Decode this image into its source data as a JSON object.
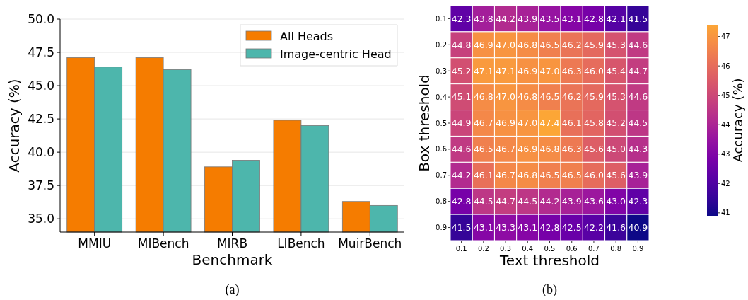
{
  "chart_data": [
    {
      "type": "bar",
      "categories": [
        "MMIU",
        "MIBench",
        "MIRB",
        "LIBench",
        "MuirBench"
      ],
      "series": [
        {
          "name": "All Heads",
          "color": "#f57c00",
          "values": [
            47.1,
            47.1,
            38.9,
            42.4,
            36.3
          ]
        },
        {
          "name": "Image-centric Head",
          "color": "#4db6ac",
          "values": [
            46.4,
            46.2,
            39.4,
            42.0,
            36.0
          ]
        }
      ],
      "xlabel": "Benchmark",
      "ylabel": "Accuracy (%)",
      "ylim": [
        34,
        50
      ],
      "yticks": [
        {
          "value": 35,
          "label": "35.0"
        },
        {
          "value": 37.5,
          "label": "37.5"
        },
        {
          "value": 40,
          "label": "40.0"
        },
        {
          "value": 42.5,
          "label": "42.5"
        },
        {
          "value": 45,
          "label": "45.0"
        },
        {
          "value": 47.5,
          "label": "47.5"
        },
        {
          "value": 50,
          "label": "50.0"
        }
      ],
      "grid": "y",
      "legend": "top right",
      "annotations": [
        "(a)"
      ]
    },
    {
      "type": "heatmap",
      "categories": [
        "0.1",
        "0.2",
        "0.3",
        "0.4",
        "0.5",
        "0.6",
        "0.7",
        "0.8",
        "0.9"
      ],
      "y_categories": [
        "0.1",
        "0.2",
        "0.3",
        "0.4",
        "0.5",
        "0.6",
        "0.7",
        "0.8",
        "0.9"
      ],
      "cells": [
        [
          42.3,
          43.8,
          44.2,
          43.9,
          43.5,
          43.1,
          42.8,
          42.1,
          41.5
        ],
        [
          44.8,
          46.9,
          47.0,
          46.8,
          46.5,
          46.2,
          45.9,
          45.3,
          44.6
        ],
        [
          45.2,
          47.1,
          47.1,
          46.9,
          47.0,
          46.3,
          46.0,
          45.4,
          44.7
        ],
        [
          45.1,
          46.8,
          47.0,
          46.8,
          46.5,
          46.2,
          45.9,
          45.3,
          44.6
        ],
        [
          44.9,
          46.7,
          46.9,
          47.0,
          47.4,
          46.1,
          45.8,
          45.2,
          44.5
        ],
        [
          44.6,
          46.5,
          46.7,
          46.9,
          46.8,
          46.3,
          45.6,
          45.0,
          44.3
        ],
        [
          44.2,
          46.1,
          46.7,
          46.8,
          46.5,
          46.5,
          46.0,
          45.6,
          43.9
        ],
        [
          42.8,
          44.5,
          44.7,
          44.5,
          44.2,
          43.9,
          43.6,
          43.0,
          42.3
        ],
        [
          41.5,
          43.1,
          43.3,
          43.1,
          42.8,
          42.5,
          42.2,
          41.6,
          40.9
        ]
      ],
      "cell_labels": [
        [
          "42.3",
          "43.8",
          "44.2",
          "43.9",
          "43.5",
          "43.1",
          "42.8",
          "42.1",
          "41.5"
        ],
        [
          "44.8",
          "46.9",
          "47.0",
          "46.8",
          "46.5",
          "46.2",
          "45.9",
          "45.3",
          "44.6"
        ],
        [
          "45.2",
          "47.1",
          "47.1",
          "46.9",
          "47.0",
          "46.3",
          "46.0",
          "45.4",
          "44.7"
        ],
        [
          "45.1",
          "46.8",
          "47.0",
          "46.8",
          "46.5",
          "46.2",
          "45.9",
          "45.3",
          "44.6"
        ],
        [
          "44.9",
          "46.7",
          "46.9",
          "47.0",
          "47.4",
          "46.1",
          "45.8",
          "45.2",
          "44.5"
        ],
        [
          "44.6",
          "46.5",
          "46.7",
          "46.9",
          "46.8",
          "46.3",
          "45.6",
          "45.0",
          "44.3"
        ],
        [
          "44.2",
          "46.1",
          "46.7",
          "46.8",
          "46.5",
          "46.5",
          "46.0",
          "45.6",
          "43.9"
        ],
        [
          "42.8",
          "44.5",
          "44.7",
          "44.5",
          "44.2",
          "43.9",
          "43.6",
          "43.0",
          "42.3"
        ],
        [
          "41.5",
          "43.1",
          "43.3",
          "43.1",
          "42.8",
          "42.5",
          "42.2",
          "41.6",
          "40.9"
        ]
      ],
      "data_labels": true,
      "xlabel": "Text threshold",
      "ylabel": "Box threshold",
      "clabel": "Accuracy (%)",
      "clim": [
        40.9,
        47.4
      ],
      "cticks": [
        41,
        42,
        43,
        44,
        45,
        46,
        47
      ],
      "annotations": [
        "(b)"
      ]
    }
  ]
}
